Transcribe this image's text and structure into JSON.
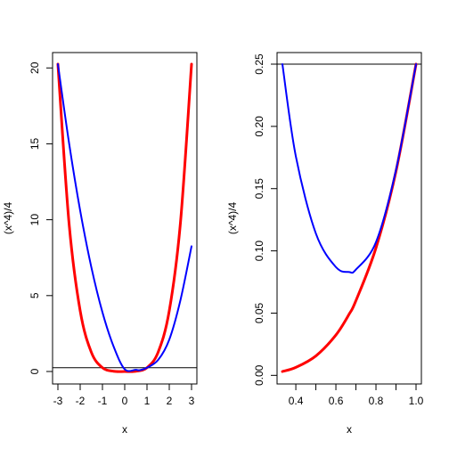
{
  "chart_data": [
    {
      "type": "line",
      "xlabel": "x",
      "ylabel": "(x^4)/4",
      "xlim": [
        -3,
        3
      ],
      "ylim": [
        0,
        20.25
      ],
      "x_ticks": [
        -3,
        -2,
        -1,
        0,
        1,
        2,
        3
      ],
      "x_tick_labels": [
        "-3",
        "-2",
        "-1",
        "0",
        "1",
        "2",
        "3"
      ],
      "y_ticks": [
        0,
        5,
        10,
        15,
        20
      ],
      "y_tick_labels": [
        "0",
        "5",
        "10",
        "15",
        "20"
      ],
      "series": [
        {
          "color": "#ff0000",
          "x": [
            -3,
            -2.5,
            -2,
            -1.5,
            -1,
            -0.5,
            0,
            0.5,
            1,
            1.5,
            2,
            2.5,
            3
          ],
          "y": [
            20.25,
            9.77,
            4,
            1.27,
            0.25,
            0.016,
            0,
            0.016,
            0.25,
            1.27,
            4,
            9.77,
            20.25
          ]
        },
        {
          "color": "#0000ff",
          "x": [
            -3,
            -2.5,
            -2,
            -1.5,
            -1,
            -0.5,
            0,
            0.5,
            0.667,
            1,
            1.5,
            2,
            2.5,
            3
          ],
          "y": [
            20.25,
            15.06,
            10.6,
            6.88,
            3.9,
            1.65,
            0.15,
            0.11,
            0.083,
            0.25,
            0.76,
            2.1,
            4.69,
            8.25
          ]
        }
      ],
      "hlines": [
        {
          "y": 0.25,
          "color": "#000000"
        }
      ]
    },
    {
      "type": "line",
      "xlabel": "x",
      "ylabel": "(x^4)/4",
      "xlim": [
        0.333,
        1.0
      ],
      "ylim": [
        0.0031,
        0.25
      ],
      "x_ticks": [
        0.4,
        0.6,
        0.8,
        1.0
      ],
      "x_tick_labels": [
        "0.4",
        "0.6",
        "0.8",
        "1.0"
      ],
      "x_minor_ticks": [
        0.5,
        0.7,
        0.9
      ],
      "y_ticks": [
        0.0,
        0.05,
        0.1,
        0.15,
        0.2,
        0.25
      ],
      "y_tick_labels": [
        "0.00",
        "0.05",
        "0.10",
        "0.15",
        "0.20",
        "0.25"
      ],
      "series": [
        {
          "color": "#ff0000",
          "x": [
            0.333,
            0.4,
            0.5,
            0.6,
            0.667,
            0.7,
            0.8,
            0.9,
            1.0
          ],
          "y": [
            0.0031,
            0.0064,
            0.0156,
            0.0324,
            0.0494,
            0.06,
            0.1024,
            0.164,
            0.25
          ]
        },
        {
          "color": "#0000ff",
          "x": [
            0.333,
            0.4,
            0.5,
            0.6,
            0.667,
            0.7,
            0.8,
            0.9,
            1.0
          ],
          "y": [
            0.25,
            0.176,
            0.114,
            0.087,
            0.083,
            0.085,
            0.107,
            0.165,
            0.25
          ]
        }
      ],
      "hlines": [
        {
          "y": 0.25,
          "color": "#000000"
        }
      ]
    }
  ]
}
